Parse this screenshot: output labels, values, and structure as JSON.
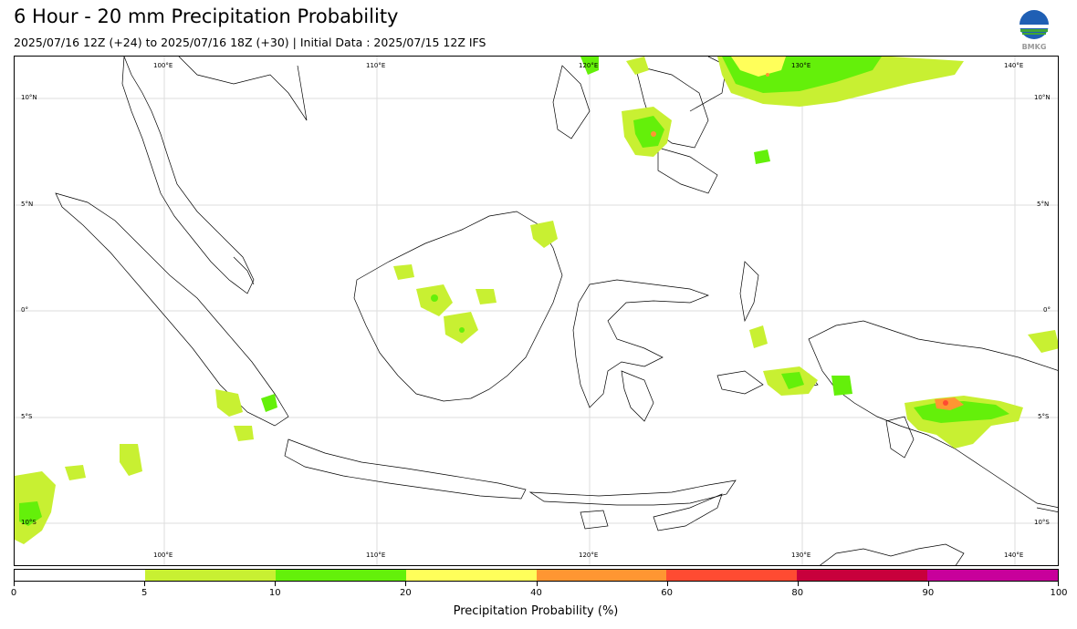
{
  "title": "6 Hour - 20 mm Precipitation Probability",
  "subtitle": "2025/07/16 12Z (+24) to 2025/07/16 18Z (+30) | Initial Data : 2025/07/15 12Z IFS",
  "logo_text": "BMKG",
  "map": {
    "lon_labels_top": [
      "100°E",
      "110°E",
      "120°E",
      "130°E",
      "140°E"
    ],
    "lon_labels_bottom": [
      "100°E",
      "110°E",
      "120°E",
      "130°E",
      "140°E"
    ],
    "lat_labels_left": [
      "10°N",
      "5°N",
      "0°",
      "5°S",
      "10°S"
    ],
    "lat_labels_right": [
      "10°N",
      "5°N",
      "0°",
      "5°S",
      "10°S"
    ]
  },
  "colorbar": {
    "label": "Precipitation Probability (%)",
    "ticks": [
      "0",
      "5",
      "10",
      "20",
      "40",
      "60",
      "80",
      "90",
      "100"
    ],
    "colors": [
      "#ffffff",
      "#c8f032",
      "#64f00a",
      "#ffff5a",
      "#ff9632",
      "#ff4b32",
      "#c8003c",
      "#c8009b"
    ]
  }
}
